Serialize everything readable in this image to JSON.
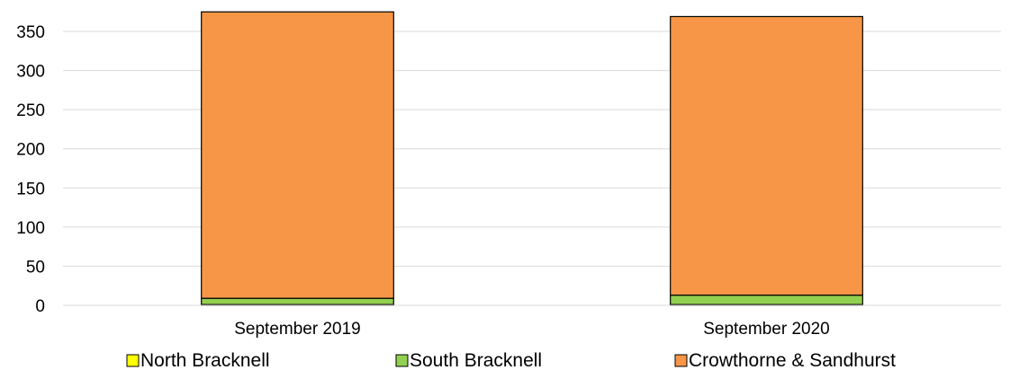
{
  "chart_data": {
    "type": "bar",
    "stacked": true,
    "categories": [
      "September 2019",
      "September 2020"
    ],
    "series": [
      {
        "name": "North Bracknell",
        "values": [
          1,
          1
        ],
        "color": "#FFFF00"
      },
      {
        "name": "South Bracknell",
        "values": [
          8,
          12
        ],
        "color": "#92D050"
      },
      {
        "name": "Crowthorne & Sandhurst",
        "values": [
          366,
          356
        ],
        "color": "#F79646"
      }
    ],
    "title": "",
    "xlabel": "",
    "ylabel": "",
    "ylim": [
      0,
      375
    ],
    "yticks": [
      0,
      50,
      100,
      150,
      200,
      250,
      300,
      350
    ],
    "grid": true,
    "legend_position": "bottom"
  }
}
